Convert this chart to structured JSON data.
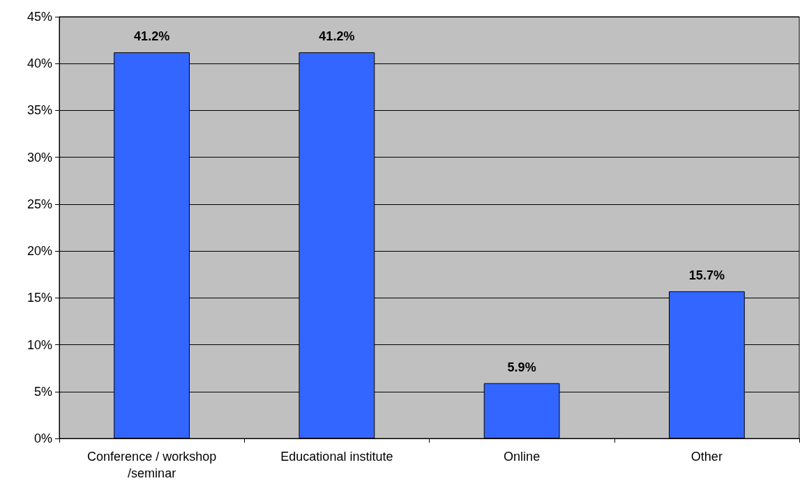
{
  "chart_data": {
    "type": "bar",
    "categories": [
      "Conference / workshop/seminar",
      "Educational institute",
      "Online",
      "Other"
    ],
    "values": [
      41.2,
      41.2,
      5.9,
      15.7
    ],
    "value_labels": [
      "41.2%",
      "41.2%",
      "5.9%",
      "15.7%"
    ],
    "color": "#3366ff",
    "ylim": [
      0,
      45
    ],
    "yticks": [
      {
        "value": 0,
        "label": "0%"
      },
      {
        "value": 5,
        "label": "5%"
      },
      {
        "value": 10,
        "label": "10%"
      },
      {
        "value": 15,
        "label": "15%"
      },
      {
        "value": 20,
        "label": "20%"
      },
      {
        "value": 25,
        "label": "25%"
      },
      {
        "value": 30,
        "label": "30%"
      },
      {
        "value": 35,
        "label": "35%"
      },
      {
        "value": 40,
        "label": "40%"
      },
      {
        "value": 45,
        "label": "45%"
      }
    ],
    "grid": "y"
  }
}
